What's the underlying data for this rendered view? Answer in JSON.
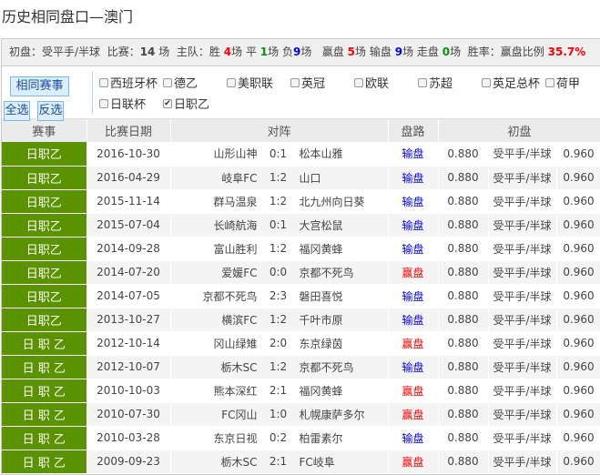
{
  "title": "历史相同盘口—澳门",
  "summary": {
    "handicap_label": "初盘：受平手/半球",
    "match_label": "比赛：",
    "match_count": "14",
    "match_unit": "场",
    "home_label": "主队：胜",
    "wins": "4",
    "unit": "场",
    "draw_label": "平",
    "draws": "1",
    "loss_label": "负",
    "losses": "9",
    "win_pan_label": "赢盘",
    "win_pan": "5",
    "lose_pan_label": "输盘",
    "lose_pan": "9",
    "walk_label": "走盘",
    "walk": "0",
    "rate_label": "胜率：赢盘比例",
    "rate": "35.7%"
  },
  "buttons": {
    "same": "相同赛事",
    "all": "全选",
    "invert": "反选"
  },
  "leagues": [
    {
      "label": "西班牙杯",
      "checked": false
    },
    {
      "label": "德乙",
      "checked": false
    },
    {
      "label": "美职联",
      "checked": false
    },
    {
      "label": "英冠",
      "checked": false
    },
    {
      "label": "欧联",
      "checked": false
    },
    {
      "label": "苏超",
      "checked": false
    },
    {
      "label": "英足总杯",
      "checked": false
    },
    {
      "label": "荷甲",
      "checked": false
    },
    {
      "label": "日联杯",
      "checked": false
    },
    {
      "label": "日职乙",
      "checked": true
    }
  ],
  "headers": {
    "league": "赛事",
    "date": "比赛日期",
    "match": "对阵",
    "result": "盘路",
    "odds": "初盘"
  },
  "rows": [
    {
      "league": "日职乙",
      "date": "2016-10-30",
      "home": "山形山神",
      "score": "0:1",
      "away": "松本山雅",
      "result": "输盘",
      "o1": "0.880",
      "hc": "受平手/半球",
      "o2": "0.960"
    },
    {
      "league": "日职乙",
      "date": "2016-04-29",
      "home": "岐阜FC",
      "score": "1:2",
      "away": "山口",
      "result": "输盘",
      "o1": "0.880",
      "hc": "受平手/半球",
      "o2": "0.960"
    },
    {
      "league": "日职乙",
      "date": "2015-11-14",
      "home": "群马温泉",
      "score": "1:2",
      "away": "北九州向日葵",
      "result": "输盘",
      "o1": "0.880",
      "hc": "受平手/半球",
      "o2": "0.960"
    },
    {
      "league": "日职乙",
      "date": "2015-07-04",
      "home": "长崎航海",
      "score": "0:1",
      "away": "大宫松鼠",
      "result": "输盘",
      "o1": "0.880",
      "hc": "受平手/半球",
      "o2": "0.960"
    },
    {
      "league": "日职乙",
      "date": "2014-09-28",
      "home": "富山胜利",
      "score": "1:2",
      "away": "福冈黄蜂",
      "result": "输盘",
      "o1": "0.880",
      "hc": "受平手/半球",
      "o2": "0.960"
    },
    {
      "league": "日职乙",
      "date": "2014-07-20",
      "home": "爱媛FC",
      "score": "0:0",
      "away": "京都不死鸟",
      "result": "赢盘",
      "o1": "0.880",
      "hc": "受平手/半球",
      "o2": "0.960"
    },
    {
      "league": "日职乙",
      "date": "2014-07-05",
      "home": "京都不死鸟",
      "score": "2:3",
      "away": "磐田喜悦",
      "result": "输盘",
      "o1": "0.880",
      "hc": "受平手/半球",
      "o2": "0.960"
    },
    {
      "league": "日职乙",
      "date": "2013-10-27",
      "home": "横滨FC",
      "score": "1:2",
      "away": "千叶市原",
      "result": "输盘",
      "o1": "0.880",
      "hc": "受平手/半球",
      "o2": "0.960"
    },
    {
      "league": "日 职 乙",
      "date": "2012-10-14",
      "home": "冈山绿雉",
      "score": "2:0",
      "away": "东京绿茵",
      "result": "赢盘",
      "o1": "0.880",
      "hc": "受平手/半球",
      "o2": "0.960"
    },
    {
      "league": "日 职 乙",
      "date": "2012-10-07",
      "home": "栃木SC",
      "score": "1:2",
      "away": "京都不死鸟",
      "result": "输盘",
      "o1": "0.880",
      "hc": "受平手/半球",
      "o2": "0.960"
    },
    {
      "league": "日 职 乙",
      "date": "2010-10-03",
      "home": "熊本深红",
      "score": "2:1",
      "away": "福冈黄蜂",
      "result": "赢盘",
      "o1": "0.880",
      "hc": "受平手/半球",
      "o2": "0.960"
    },
    {
      "league": "日 职 乙",
      "date": "2010-07-30",
      "home": "FC冈山",
      "score": "1:0",
      "away": "札幌康萨多尔",
      "result": "赢盘",
      "o1": "0.880",
      "hc": "受平手/半球",
      "o2": "0.960"
    },
    {
      "league": "日 职 乙",
      "date": "2010-03-28",
      "home": "东京日视",
      "score": "0:2",
      "away": "柏雷素尔",
      "result": "输盘",
      "o1": "0.880",
      "hc": "受平手/半球",
      "o2": "0.960"
    },
    {
      "league": "日 职 乙",
      "date": "2009-09-23",
      "home": "栃木SC",
      "score": "2:1",
      "away": "FC岐阜",
      "result": "赢盘",
      "o1": "0.880",
      "hc": "受平手/半球",
      "o2": "0.960"
    }
  ]
}
